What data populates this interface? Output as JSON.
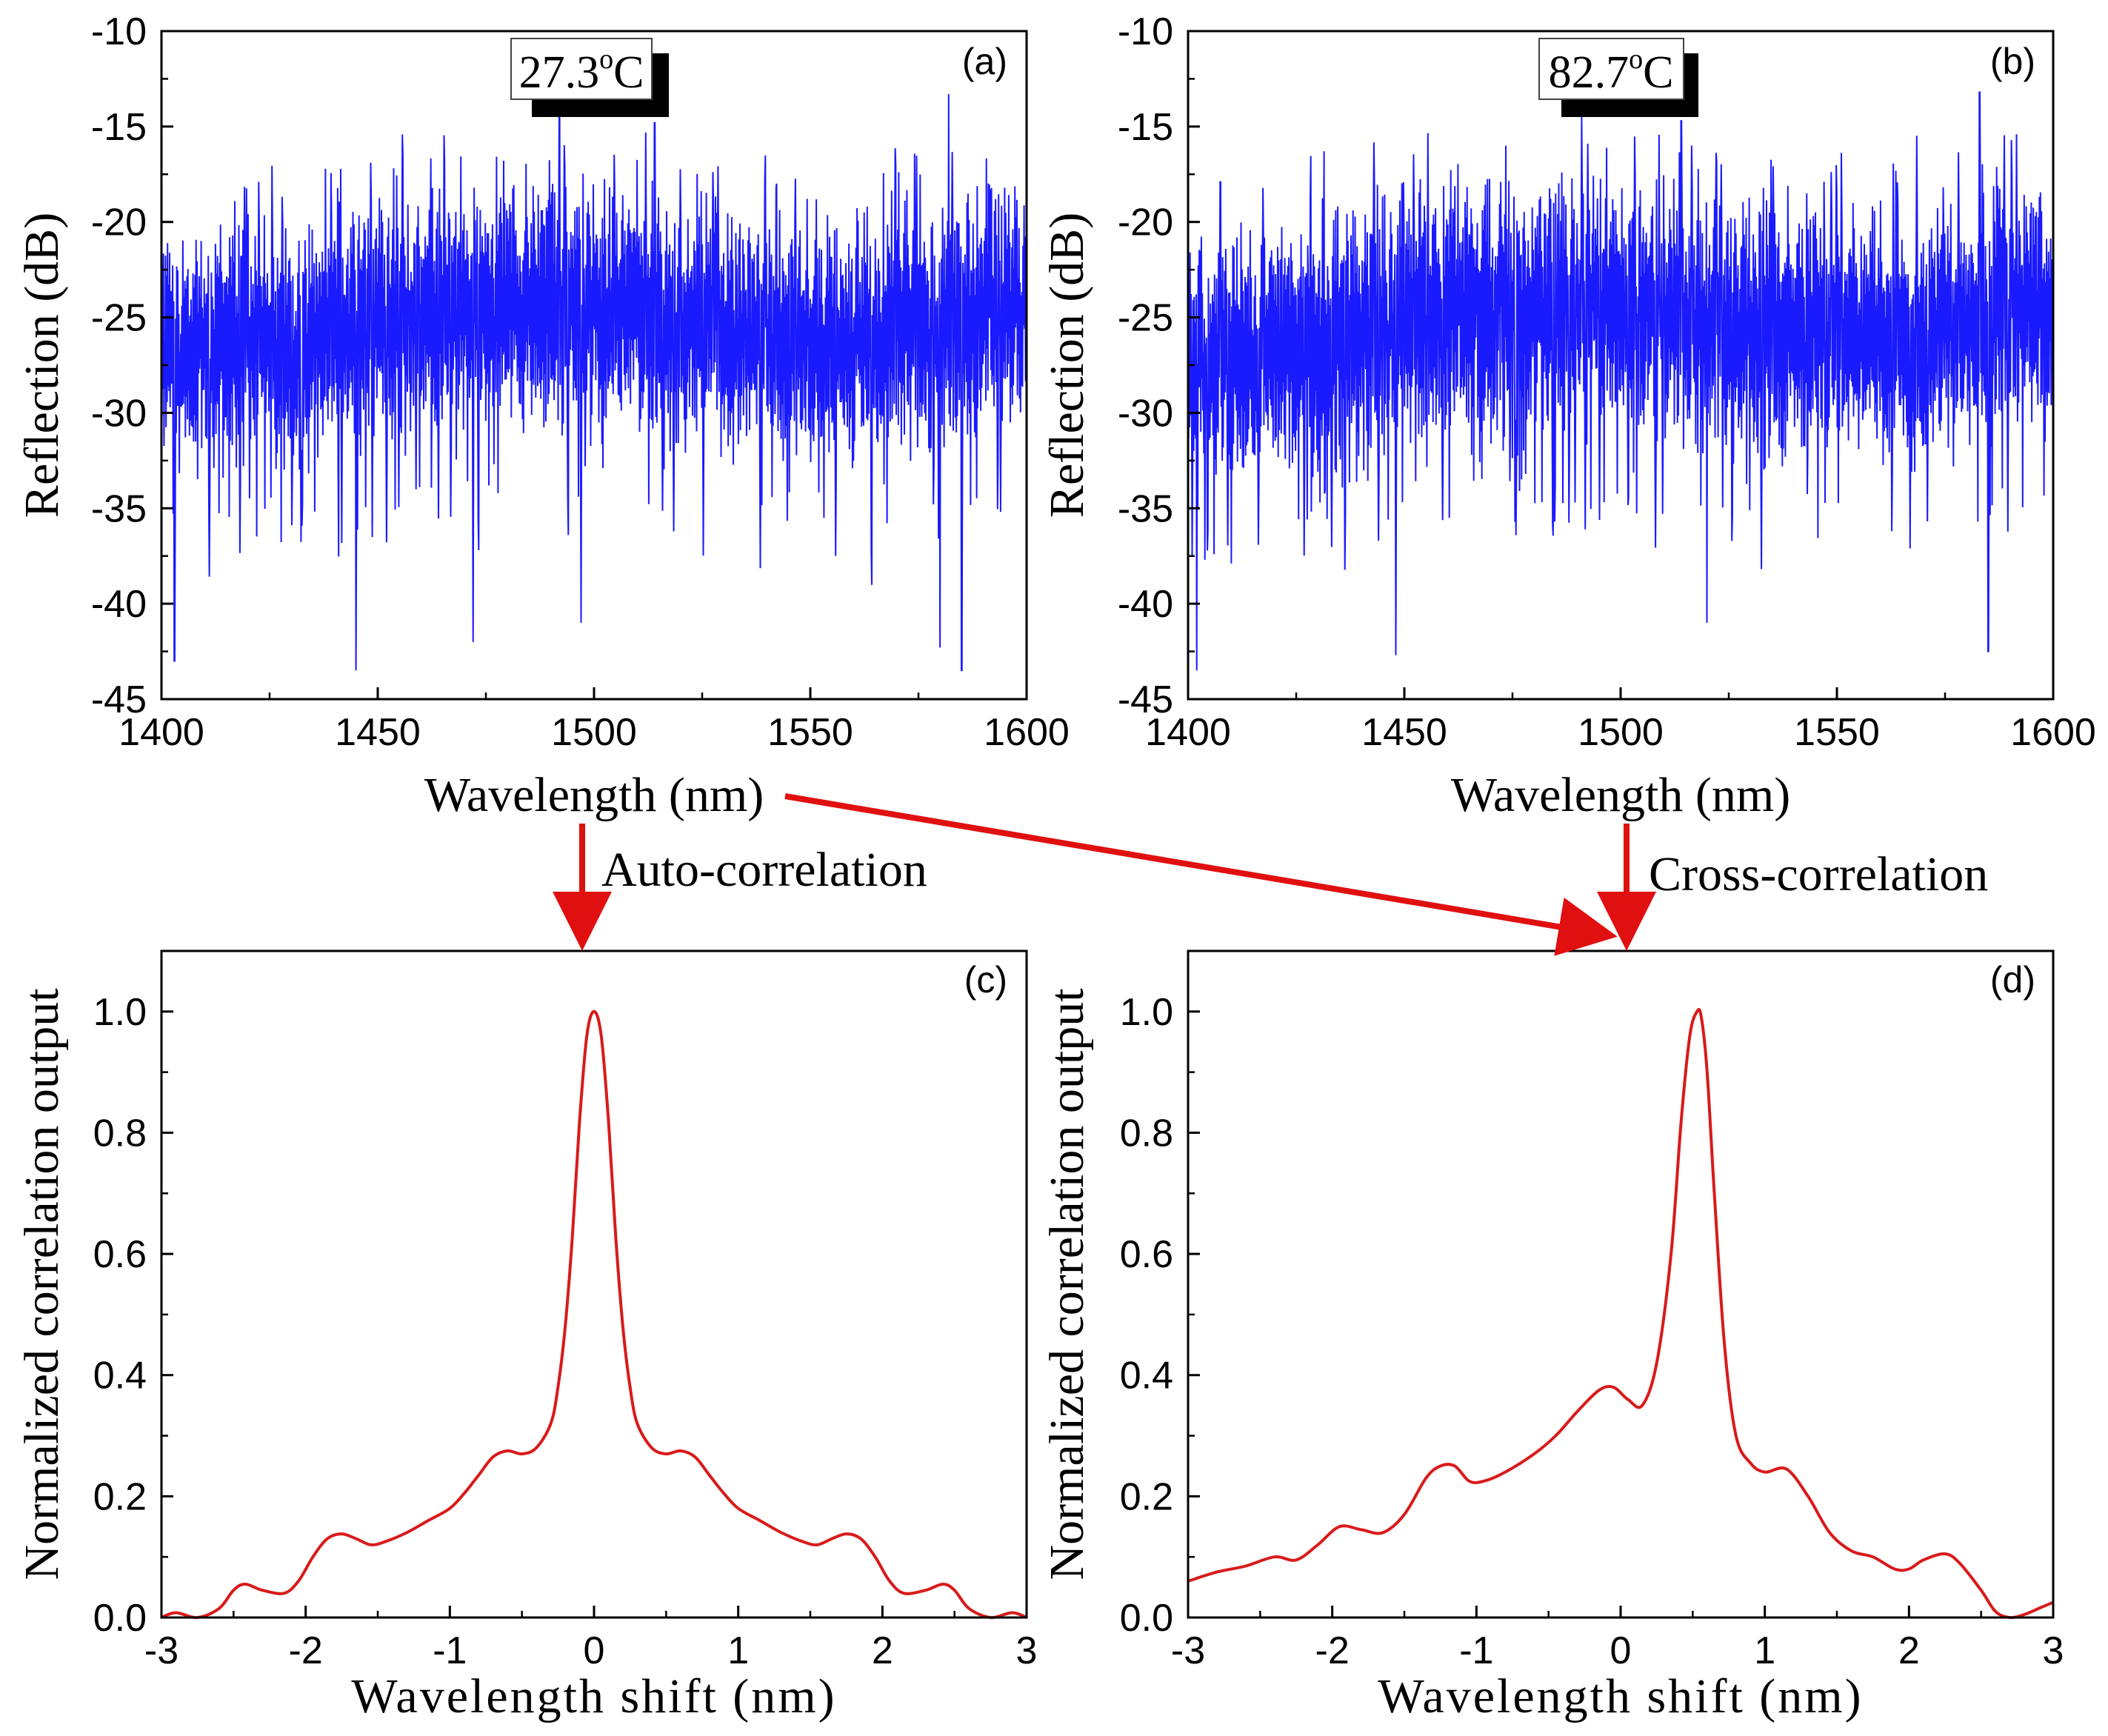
{
  "chart_data": [
    {
      "panel": "(a)",
      "type": "line",
      "title": "",
      "annotation": "27.3°C",
      "annotation_parts": {
        "value": "27.3",
        "sup": "o",
        "unit": "C"
      },
      "xlabel": "Wavelength (nm)",
      "ylabel": "Reflection (dB)",
      "xlim": [
        1400,
        1600
      ],
      "ylim": [
        -45,
        -10
      ],
      "xticks": [
        1400,
        1450,
        1500,
        1550,
        1600
      ],
      "yticks": [
        -10,
        -15,
        -20,
        -25,
        -30,
        -35,
        -40,
        -45
      ],
      "color": "#1a1aff",
      "series_description": "dense noisy reflection spectrum",
      "mean_db": -26,
      "notable_points": [
        {
          "x": 1403,
          "y": -43
        },
        {
          "x": 1445,
          "y": -43.5
        },
        {
          "x": 1472,
          "y": -42
        },
        {
          "x": 1492,
          "y": -14.5
        },
        {
          "x": 1497,
          "y": -41
        },
        {
          "x": 1514,
          "y": -14.8
        },
        {
          "x": 1580,
          "y": -42.3
        },
        {
          "x": 1582,
          "y": -13.3
        },
        {
          "x": 1585,
          "y": -43.5
        }
      ]
    },
    {
      "panel": "(b)",
      "type": "line",
      "title": "",
      "annotation": "82.7°C",
      "annotation_parts": {
        "value": "82.7",
        "sup": "o",
        "unit": "C"
      },
      "xlabel": "Wavelength (nm)",
      "ylabel": "Reflection (dB)",
      "xlim": [
        1400,
        1600
      ],
      "ylim": [
        -45,
        -10
      ],
      "xticks": [
        1400,
        1450,
        1500,
        1550,
        1600
      ],
      "yticks": [
        -10,
        -15,
        -20,
        -25,
        -30,
        -35,
        -40,
        -45
      ],
      "color": "#1a1aff",
      "series_description": "dense noisy reflection spectrum",
      "mean_db": -26,
      "notable_points": [
        {
          "x": 1402,
          "y": -43.5
        },
        {
          "x": 1448,
          "y": -42.7
        },
        {
          "x": 1491,
          "y": -14.5
        },
        {
          "x": 1514,
          "y": -14.7
        },
        {
          "x": 1520,
          "y": -41
        },
        {
          "x": 1583,
          "y": -13.2
        },
        {
          "x": 1585,
          "y": -42.5
        }
      ]
    },
    {
      "panel": "(c)",
      "type": "line",
      "title": "",
      "xlabel": "Wavelength shift (nm)",
      "ylabel": "Normalized correlation output",
      "xlim": [
        -3,
        3
      ],
      "ylim": [
        0,
        1.1
      ],
      "xticks": [
        -3,
        -2,
        -1,
        0,
        1,
        2,
        3
      ],
      "yticks": [
        0.0,
        0.2,
        0.4,
        0.6,
        0.8,
        1.0
      ],
      "ytick_labels": [
        "0.0",
        "0.2",
        "0.4",
        "0.6",
        "0.8",
        "1.0"
      ],
      "color": "#d91a1a",
      "x": [
        -3.0,
        -2.9,
        -2.75,
        -2.6,
        -2.5,
        -2.42,
        -2.3,
        -2.15,
        -2.05,
        -1.95,
        -1.85,
        -1.75,
        -1.65,
        -1.55,
        -1.45,
        -1.3,
        -1.15,
        -1.0,
        -0.9,
        -0.8,
        -0.7,
        -0.6,
        -0.5,
        -0.4,
        -0.3,
        -0.25,
        -0.2,
        -0.15,
        -0.1,
        -0.05,
        0.0,
        0.05,
        0.1,
        0.15,
        0.2,
        0.25,
        0.3,
        0.4,
        0.5,
        0.6,
        0.7,
        0.8,
        0.9,
        1.0,
        1.15,
        1.3,
        1.45,
        1.55,
        1.65,
        1.75,
        1.85,
        1.95,
        2.05,
        2.15,
        2.3,
        2.42,
        2.5,
        2.6,
        2.75,
        2.9,
        3.0
      ],
      "y": [
        0.0,
        0.008,
        0.0,
        0.015,
        0.045,
        0.055,
        0.045,
        0.04,
        0.06,
        0.1,
        0.13,
        0.138,
        0.13,
        0.12,
        0.125,
        0.14,
        0.16,
        0.18,
        0.205,
        0.235,
        0.265,
        0.275,
        0.27,
        0.28,
        0.32,
        0.38,
        0.48,
        0.63,
        0.82,
        0.96,
        1.0,
        0.96,
        0.82,
        0.63,
        0.48,
        0.38,
        0.32,
        0.28,
        0.27,
        0.275,
        0.265,
        0.235,
        0.205,
        0.18,
        0.16,
        0.14,
        0.125,
        0.12,
        0.13,
        0.138,
        0.13,
        0.1,
        0.06,
        0.04,
        0.045,
        0.055,
        0.045,
        0.015,
        0.0,
        0.008,
        0.0
      ]
    },
    {
      "panel": "(d)",
      "type": "line",
      "title": "",
      "xlabel": "Wavelength shift (nm)",
      "ylabel": "Normalized correlation output",
      "xlim": [
        -3,
        3
      ],
      "ylim": [
        0,
        1.1
      ],
      "xticks": [
        -3,
        -2,
        -1,
        0,
        1,
        2,
        3
      ],
      "yticks": [
        0.0,
        0.2,
        0.4,
        0.6,
        0.8,
        1.0
      ],
      "ytick_labels": [
        "0.0",
        "0.2",
        "0.4",
        "0.6",
        "0.8",
        "1.0"
      ],
      "color": "#d91a1a",
      "x": [
        -3.0,
        -2.8,
        -2.6,
        -2.4,
        -2.25,
        -2.1,
        -1.95,
        -1.8,
        -1.65,
        -1.5,
        -1.35,
        -1.25,
        -1.15,
        -1.05,
        -0.95,
        -0.8,
        -0.6,
        -0.45,
        -0.3,
        -0.15,
        -0.05,
        0.05,
        0.15,
        0.25,
        0.35,
        0.42,
        0.48,
        0.53,
        0.56,
        0.6,
        0.65,
        0.72,
        0.8,
        0.9,
        1.0,
        1.15,
        1.3,
        1.45,
        1.6,
        1.75,
        1.9,
        2.0,
        2.1,
        2.25,
        2.35,
        2.5,
        2.6,
        2.7,
        2.8,
        2.9,
        3.0
      ],
      "y": [
        0.06,
        0.075,
        0.085,
        0.1,
        0.095,
        0.12,
        0.15,
        0.145,
        0.14,
        0.17,
        0.23,
        0.25,
        0.25,
        0.225,
        0.225,
        0.24,
        0.27,
        0.3,
        0.34,
        0.375,
        0.38,
        0.36,
        0.35,
        0.42,
        0.6,
        0.82,
        0.96,
        1.0,
        0.99,
        0.9,
        0.7,
        0.45,
        0.3,
        0.255,
        0.24,
        0.245,
        0.2,
        0.14,
        0.11,
        0.1,
        0.08,
        0.08,
        0.095,
        0.105,
        0.09,
        0.045,
        0.01,
        0.0,
        0.005,
        0.015,
        0.025
      ]
    }
  ],
  "annotations": {
    "auto_correlation": "Auto-correlation",
    "cross_correlation": "Cross-correlation",
    "arrow_color": "#e01010"
  }
}
